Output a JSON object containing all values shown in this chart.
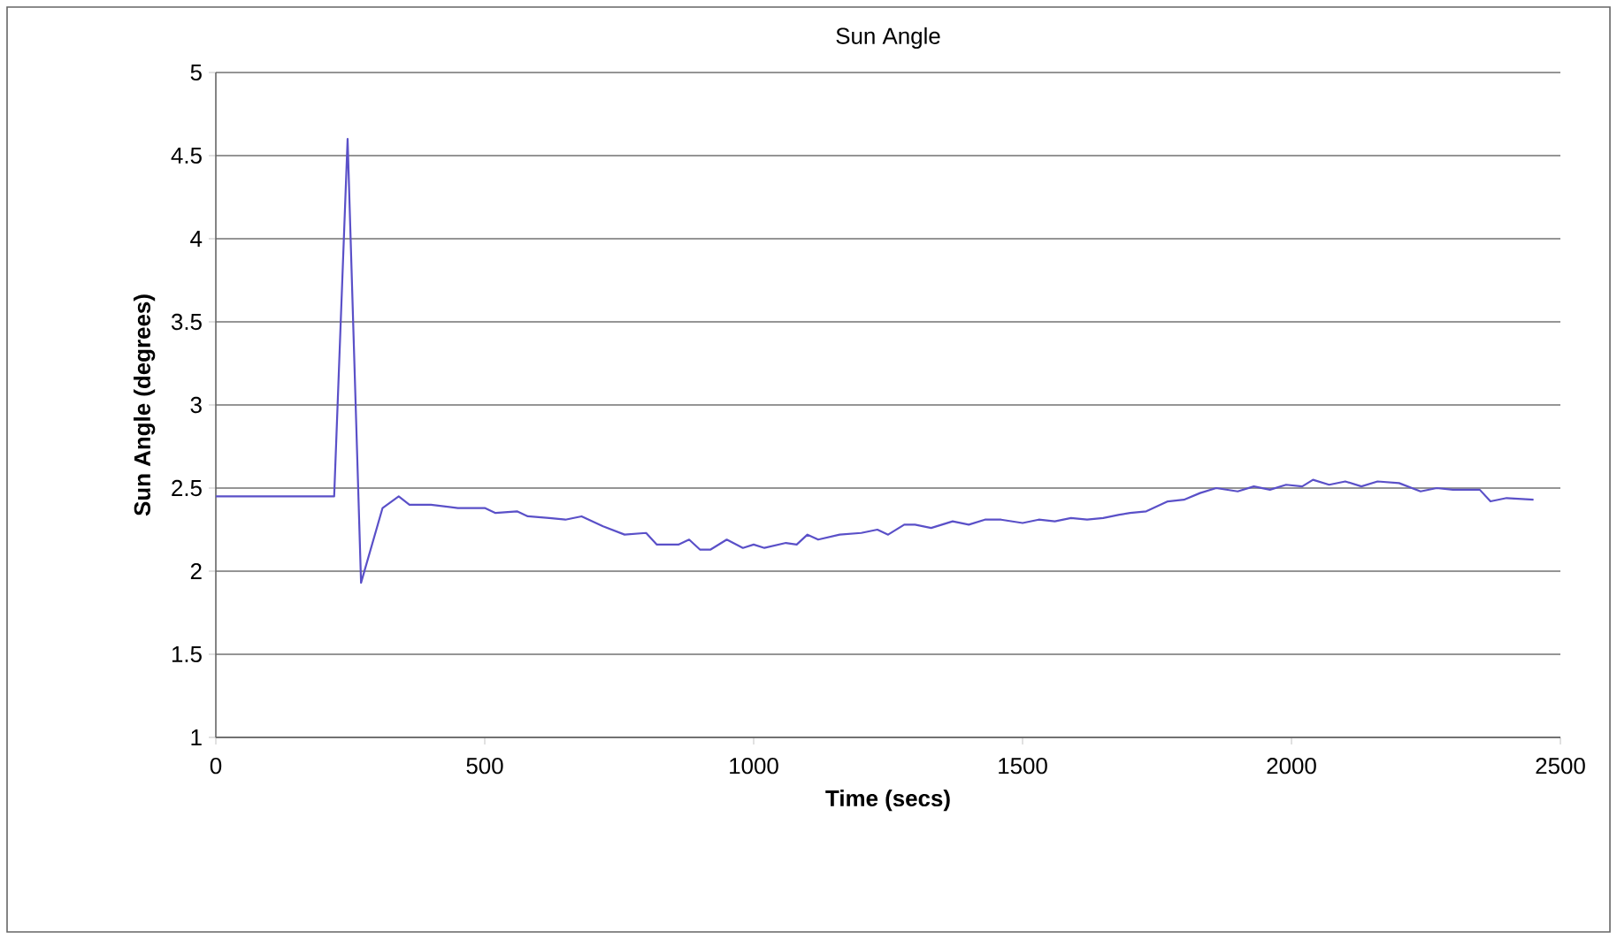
{
  "chart_data": {
    "type": "line",
    "title": "Sun Angle",
    "xlabel": "Time (secs)",
    "ylabel": "Sun Angle (degrees)",
    "xlim": [
      0,
      2500
    ],
    "xticks": [
      0,
      500,
      1000,
      1500,
      2000,
      2500
    ],
    "ylim": [
      1,
      5
    ],
    "yticks": [
      1,
      1.5,
      2,
      2.5,
      3,
      3.5,
      4,
      4.5,
      5
    ],
    "grid": "y",
    "series": [
      {
        "color": "#5a50c8",
        "x": [
          0,
          220,
          245,
          270,
          310,
          340,
          360,
          400,
          450,
          500,
          520,
          560,
          580,
          620,
          650,
          680,
          720,
          760,
          800,
          820,
          860,
          880,
          900,
          920,
          950,
          980,
          1000,
          1020,
          1060,
          1080,
          1100,
          1120,
          1160,
          1200,
          1230,
          1250,
          1280,
          1300,
          1330,
          1370,
          1400,
          1430,
          1460,
          1500,
          1530,
          1560,
          1590,
          1620,
          1650,
          1680,
          1700,
          1730,
          1770,
          1800,
          1830,
          1860,
          1900,
          1930,
          1960,
          1990,
          2020,
          2040,
          2070,
          2100,
          2130,
          2160,
          2200,
          2240,
          2270,
          2300,
          2350,
          2370,
          2400,
          2450
        ],
        "values": [
          2.45,
          2.45,
          4.6,
          1.93,
          2.38,
          2.45,
          2.4,
          2.4,
          2.38,
          2.38,
          2.35,
          2.36,
          2.33,
          2.32,
          2.31,
          2.33,
          2.27,
          2.22,
          2.23,
          2.16,
          2.16,
          2.19,
          2.13,
          2.13,
          2.19,
          2.14,
          2.16,
          2.14,
          2.17,
          2.16,
          2.22,
          2.19,
          2.22,
          2.23,
          2.25,
          2.22,
          2.28,
          2.28,
          2.26,
          2.3,
          2.28,
          2.31,
          2.31,
          2.29,
          2.31,
          2.3,
          2.32,
          2.31,
          2.32,
          2.34,
          2.35,
          2.36,
          2.42,
          2.43,
          2.47,
          2.5,
          2.48,
          2.51,
          2.49,
          2.52,
          2.51,
          2.55,
          2.52,
          2.54,
          2.51,
          2.54,
          2.53,
          2.48,
          2.5,
          2.49,
          2.49,
          2.42,
          2.44,
          2.43
        ]
      }
    ]
  }
}
